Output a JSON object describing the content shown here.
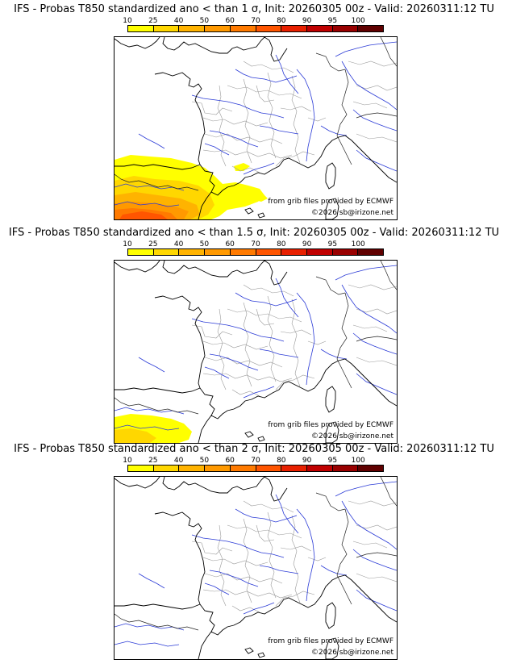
{
  "scale": {
    "ticks": [
      "10",
      "25",
      "40",
      "50",
      "60",
      "70",
      "80",
      "90",
      "95",
      "100"
    ],
    "colors": [
      "#ffff00",
      "#ffd700",
      "#ffb300",
      "#ff9900",
      "#ff7a00",
      "#ff5500",
      "#e82000",
      "#c00000",
      "#990000",
      "#600000"
    ]
  },
  "credits": {
    "source": "from grib files provided by ECMWF",
    "site": "©2026 sb@irizone.net"
  },
  "panels": [
    {
      "title": "IFS - Probas T850  standardized ano < than 1 σ, Init: 20260305 00z - Valid: 20260311:12 TU",
      "extent": "large"
    },
    {
      "title": "IFS - Probas T850  standardized ano < than 1.5 σ, Init: 20260305 00z - Valid: 20260311:12 TU",
      "extent": "small"
    },
    {
      "title": "IFS - Probas T850  standardized ano < than 2 σ, Init: 20260305 00z - Valid: 20260311:12 TU",
      "extent": "none"
    }
  ]
}
